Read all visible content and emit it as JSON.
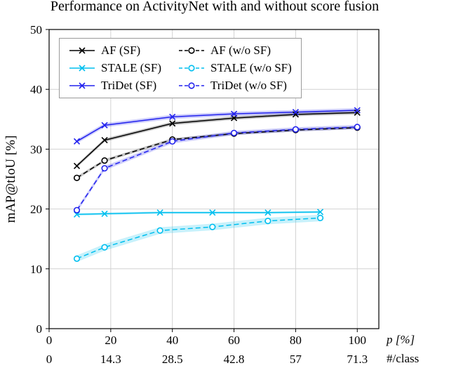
{
  "chart_data": {
    "type": "line",
    "title": "Performance on ActivityNet with and without score fusion",
    "ylabel": "mAP@tIoU [%]",
    "xlabel_primary": "p [%]",
    "xlabel_secondary": "#/class",
    "xlim": [
      0,
      107
    ],
    "ylim": [
      0,
      50
    ],
    "x_ticks": [
      0,
      20,
      40,
      60,
      80,
      100
    ],
    "x_ticks_secondary": [
      "0",
      "14.3",
      "28.5",
      "42.8",
      "57",
      "71.3"
    ],
    "y_ticks": [
      0,
      10,
      20,
      30,
      40,
      50
    ],
    "grid": true,
    "grid_color": "#d2d2d2",
    "legend_position": "top-left",
    "series": [
      {
        "name": "AF (SF)",
        "color": "#000000",
        "dash": "solid",
        "marker": "x",
        "band": 0.3,
        "x": [
          9,
          18,
          40,
          60,
          80,
          100
        ],
        "y": [
          27.2,
          31.5,
          34.3,
          35.2,
          35.8,
          36.1
        ]
      },
      {
        "name": "AF (w/o SF)",
        "color": "#000000",
        "dash": "dashed",
        "marker": "o",
        "band": 0.25,
        "x": [
          9,
          18,
          40,
          60,
          80,
          100
        ],
        "y": [
          25.2,
          28.1,
          31.6,
          32.6,
          33.2,
          33.6
        ]
      },
      {
        "name": "STALE (SF)",
        "color": "#00bfef",
        "dash": "solid",
        "marker": "x",
        "band": 0.2,
        "x": [
          9,
          18,
          36,
          53,
          71,
          88
        ],
        "y": [
          19.1,
          19.2,
          19.4,
          19.4,
          19.4,
          19.5
        ]
      },
      {
        "name": "STALE (w/o SF)",
        "color": "#00bfef",
        "dash": "dashed",
        "marker": "o",
        "band": 0.55,
        "x": [
          9,
          18,
          36,
          53,
          71,
          88
        ],
        "y": [
          11.7,
          13.6,
          16.4,
          17.0,
          18.0,
          18.5
        ]
      },
      {
        "name": "TriDet (SF)",
        "color": "#2222ee",
        "dash": "solid",
        "marker": "x",
        "band": 0.35,
        "x": [
          9,
          18,
          40,
          60,
          80,
          100
        ],
        "y": [
          31.3,
          34.0,
          35.4,
          35.9,
          36.2,
          36.5
        ]
      },
      {
        "name": "TriDet (w/o SF)",
        "color": "#2222ee",
        "dash": "dashed",
        "marker": "o",
        "band": 0.35,
        "x": [
          9,
          18,
          40,
          60,
          80,
          100
        ],
        "y": [
          19.8,
          26.8,
          31.3,
          32.7,
          33.3,
          33.7
        ]
      }
    ]
  }
}
